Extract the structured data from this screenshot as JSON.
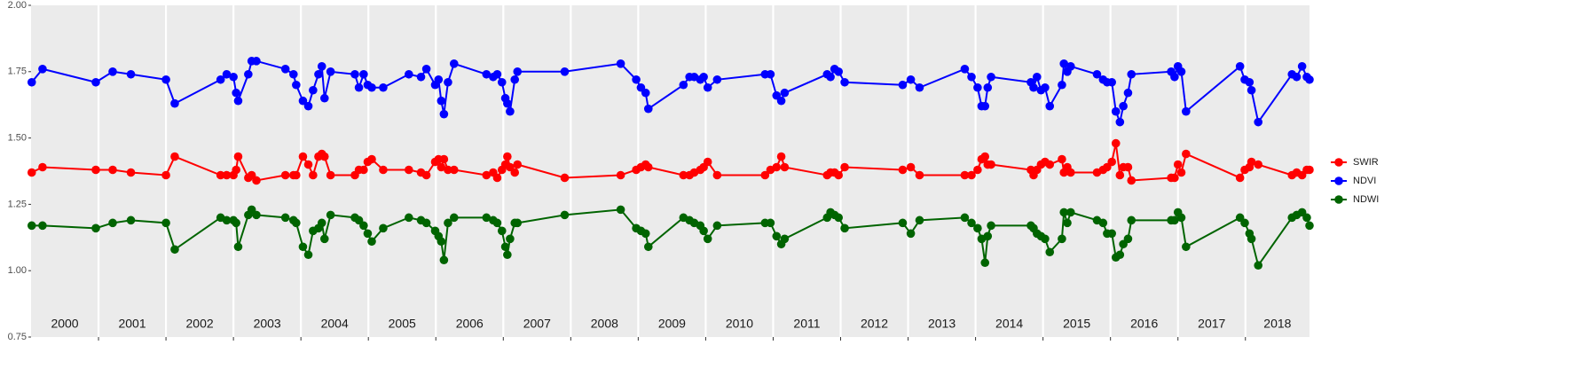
{
  "chart_data": {
    "type": "line",
    "x": [
      2000.01,
      2000.17,
      2000.96,
      2001.21,
      2001.48,
      2002.0,
      2002.13,
      2002.81,
      2002.9,
      2003.0,
      2003.04,
      2003.07,
      2003.22,
      2003.27,
      2003.34,
      2003.77,
      2003.89,
      2003.93,
      2004.03,
      2004.11,
      2004.18,
      2004.26,
      2004.31,
      2004.35,
      2004.44,
      2004.8,
      2004.86,
      2004.93,
      2004.99,
      2005.05,
      2005.22,
      2005.6,
      2005.78,
      2005.86,
      2005.99,
      2006.04,
      2006.08,
      2006.12,
      2006.18,
      2006.27,
      2006.75,
      2006.85,
      2006.91,
      2006.98,
      2007.03,
      2007.06,
      2007.1,
      2007.17,
      2007.21,
      2007.91,
      2008.74,
      2008.97,
      2009.04,
      2009.11,
      2009.15,
      2009.67,
      2009.76,
      2009.83,
      2009.92,
      2009.97,
      2010.03,
      2010.17,
      2010.88,
      2010.96,
      2011.05,
      2011.12,
      2011.17,
      2011.8,
      2011.85,
      2011.91,
      2011.97,
      2012.06,
      2012.92,
      2013.04,
      2013.17,
      2013.84,
      2013.94,
      2014.03,
      2014.09,
      2014.14,
      2014.18,
      2014.23,
      2014.82,
      2014.86,
      2014.91,
      2014.97,
      2015.03,
      2015.1,
      2015.28,
      2015.31,
      2015.36,
      2015.41,
      2015.8,
      2015.89,
      2015.95,
      2016.02,
      2016.08,
      2016.14,
      2016.19,
      2016.26,
      2016.31,
      2016.9,
      2016.95,
      2017.0,
      2017.05,
      2017.12,
      2017.92,
      2017.99,
      2018.06,
      2018.09,
      2018.19,
      2018.69,
      2018.76,
      2018.84,
      2018.91,
      2018.95
    ],
    "series": [
      {
        "name": "SWIR",
        "color": "#ff0000",
        "values": [
          1.37,
          1.39,
          1.38,
          1.38,
          1.37,
          1.36,
          1.43,
          1.36,
          1.36,
          1.36,
          1.38,
          1.43,
          1.35,
          1.36,
          1.34,
          1.36,
          1.36,
          1.36,
          1.43,
          1.4,
          1.36,
          1.43,
          1.44,
          1.43,
          1.36,
          1.36,
          1.38,
          1.38,
          1.41,
          1.42,
          1.38,
          1.38,
          1.37,
          1.36,
          1.41,
          1.42,
          1.39,
          1.42,
          1.38,
          1.38,
          1.36,
          1.37,
          1.35,
          1.38,
          1.4,
          1.43,
          1.39,
          1.37,
          1.4,
          1.35,
          1.36,
          1.38,
          1.39,
          1.4,
          1.39,
          1.36,
          1.36,
          1.37,
          1.38,
          1.39,
          1.41,
          1.36,
          1.36,
          1.38,
          1.39,
          1.43,
          1.39,
          1.36,
          1.37,
          1.37,
          1.36,
          1.39,
          1.38,
          1.39,
          1.36,
          1.36,
          1.36,
          1.38,
          1.42,
          1.43,
          1.4,
          1.4,
          1.38,
          1.36,
          1.38,
          1.4,
          1.41,
          1.4,
          1.42,
          1.37,
          1.39,
          1.37,
          1.37,
          1.38,
          1.39,
          1.41,
          1.48,
          1.36,
          1.39,
          1.39,
          1.34,
          1.35,
          1.35,
          1.4,
          1.37,
          1.44,
          1.35,
          1.38,
          1.39,
          1.41,
          1.4,
          1.36,
          1.37,
          1.36,
          1.38,
          1.38
        ]
      },
      {
        "name": "NDVI",
        "color": "#0000ff",
        "values": [
          1.71,
          1.76,
          1.71,
          1.75,
          1.74,
          1.72,
          1.63,
          1.72,
          1.74,
          1.73,
          1.67,
          1.64,
          1.74,
          1.79,
          1.79,
          1.76,
          1.74,
          1.7,
          1.64,
          1.62,
          1.68,
          1.74,
          1.77,
          1.65,
          1.75,
          1.74,
          1.69,
          1.74,
          1.7,
          1.69,
          1.69,
          1.74,
          1.73,
          1.76,
          1.7,
          1.72,
          1.64,
          1.59,
          1.71,
          1.78,
          1.74,
          1.73,
          1.74,
          1.71,
          1.65,
          1.63,
          1.6,
          1.72,
          1.75,
          1.75,
          1.78,
          1.72,
          1.69,
          1.67,
          1.61,
          1.7,
          1.73,
          1.73,
          1.72,
          1.73,
          1.69,
          1.72,
          1.74,
          1.74,
          1.66,
          1.64,
          1.67,
          1.74,
          1.73,
          1.76,
          1.75,
          1.71,
          1.7,
          1.72,
          1.69,
          1.76,
          1.73,
          1.69,
          1.62,
          1.62,
          1.69,
          1.73,
          1.71,
          1.69,
          1.73,
          1.68,
          1.69,
          1.62,
          1.7,
          1.78,
          1.75,
          1.77,
          1.74,
          1.72,
          1.71,
          1.71,
          1.6,
          1.56,
          1.62,
          1.67,
          1.74,
          1.75,
          1.73,
          1.77,
          1.75,
          1.6,
          1.77,
          1.72,
          1.71,
          1.68,
          1.56,
          1.74,
          1.73,
          1.77,
          1.73,
          1.72
        ]
      },
      {
        "name": "NDWI",
        "color": "#006400",
        "values": [
          1.17,
          1.17,
          1.16,
          1.18,
          1.19,
          1.18,
          1.08,
          1.2,
          1.19,
          1.19,
          1.18,
          1.09,
          1.21,
          1.23,
          1.21,
          1.2,
          1.19,
          1.18,
          1.09,
          1.06,
          1.15,
          1.16,
          1.18,
          1.12,
          1.21,
          1.2,
          1.19,
          1.17,
          1.14,
          1.11,
          1.16,
          1.2,
          1.19,
          1.18,
          1.15,
          1.13,
          1.11,
          1.04,
          1.18,
          1.2,
          1.2,
          1.19,
          1.18,
          1.15,
          1.09,
          1.06,
          1.12,
          1.18,
          1.18,
          1.21,
          1.23,
          1.16,
          1.15,
          1.14,
          1.09,
          1.2,
          1.19,
          1.18,
          1.17,
          1.15,
          1.12,
          1.17,
          1.18,
          1.18,
          1.13,
          1.1,
          1.12,
          1.2,
          1.22,
          1.21,
          1.2,
          1.16,
          1.18,
          1.14,
          1.19,
          1.2,
          1.18,
          1.16,
          1.12,
          1.03,
          1.13,
          1.17,
          1.17,
          1.16,
          1.14,
          1.13,
          1.12,
          1.07,
          1.12,
          1.22,
          1.18,
          1.22,
          1.19,
          1.18,
          1.14,
          1.14,
          1.05,
          1.06,
          1.1,
          1.12,
          1.19,
          1.19,
          1.19,
          1.22,
          1.2,
          1.09,
          1.2,
          1.18,
          1.14,
          1.12,
          1.02,
          1.2,
          1.21,
          1.22,
          1.2,
          1.17
        ]
      }
    ],
    "xlim": [
      2000,
      2018.95
    ],
    "xticks": [
      2001,
      2002,
      2003,
      2004,
      2005,
      2006,
      2007,
      2008,
      2009,
      2010,
      2011,
      2012,
      2013,
      2014,
      2015,
      2016,
      2017,
      2018
    ],
    "year_labels": [
      "2000",
      "2001",
      "2002",
      "2003",
      "2004",
      "2005",
      "2006",
      "2007",
      "2008",
      "2009",
      "2010",
      "2011",
      "2012",
      "2013",
      "2014",
      "2015",
      "2016",
      "2017",
      "2018"
    ],
    "ylim": [
      0.75,
      2.0
    ],
    "yticks": [
      0.75,
      {
        "value": 1.0,
        "label": "1.00"
      },
      1.25,
      {
        "value": 1.5,
        "label": "1.50"
      },
      1.75,
      {
        "value": 2.0,
        "label": "2.00"
      }
    ],
    "grid": "x",
    "legend": "right"
  }
}
